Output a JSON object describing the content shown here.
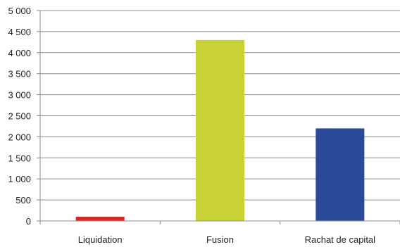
{
  "chart_data": {
    "type": "bar",
    "title": "",
    "xlabel": "",
    "ylabel": "",
    "categories": [
      "Liquidation",
      "Fusion",
      "Rachat de capital"
    ],
    "values": [
      100,
      4300,
      2200
    ],
    "colors": [
      "#d42a2a",
      "#c9d235",
      "#2a4a97"
    ],
    "ylim": [
      0,
      5000
    ],
    "yticks": [
      0,
      500,
      1000,
      1500,
      2000,
      2500,
      3000,
      3500,
      4000,
      4500,
      5000
    ],
    "ytick_labels": [
      "0",
      "500",
      "1 000",
      "1 500",
      "2 000",
      "2 500",
      "3 000",
      "3 500",
      "4 000",
      "4 500",
      "5 000"
    ],
    "grid": true,
    "legend": "none"
  }
}
